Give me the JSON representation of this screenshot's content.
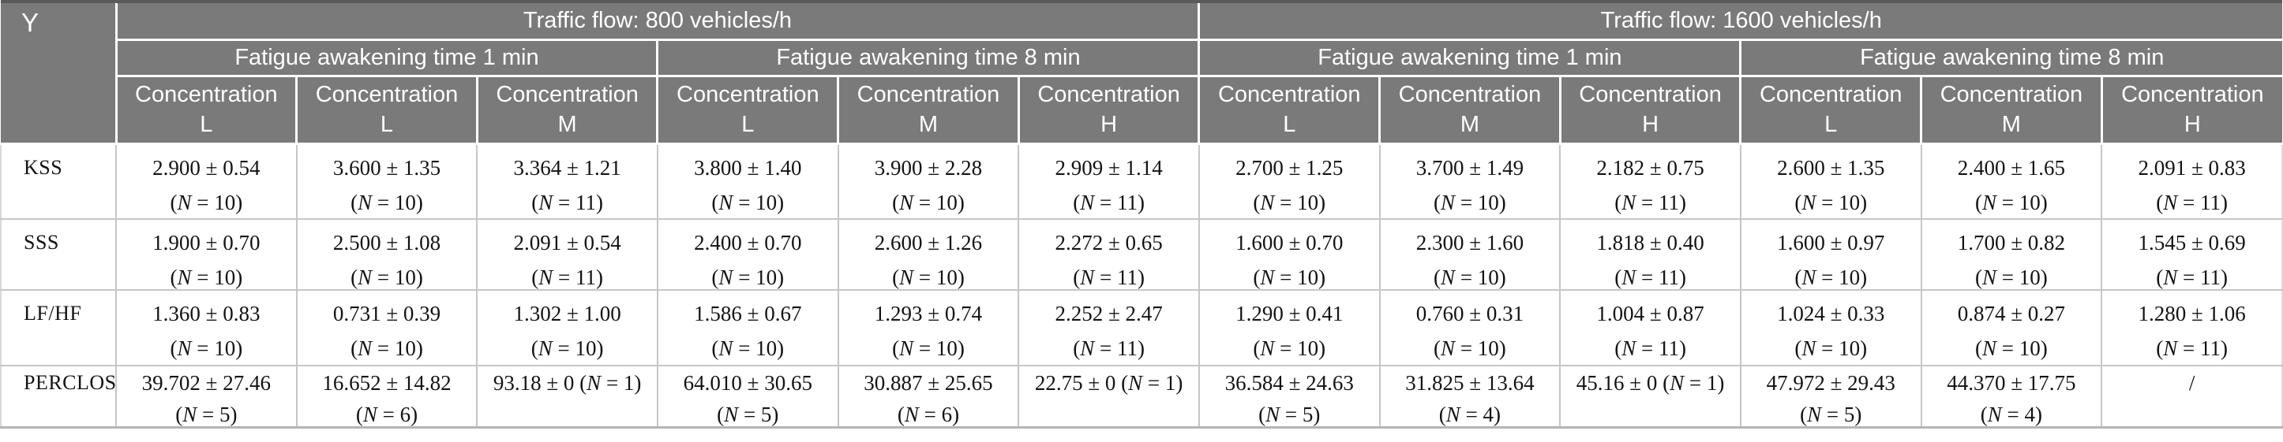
{
  "header": {
    "corner": "Y",
    "flow_groups": [
      {
        "title": "Traffic flow: 800 vehicles/h",
        "time_groups": [
          {
            "title": "Fatigue awakening time 1 min",
            "concentrations": [
              {
                "word": "Concentration",
                "level": "L"
              },
              {
                "word": "Concentration",
                "level": "L"
              },
              {
                "word": "Concentration",
                "level": "M"
              }
            ]
          },
          {
            "title": "Fatigue awakening time 8 min",
            "concentrations": [
              {
                "word": "Concentration",
                "level": "L"
              },
              {
                "word": "Concentration",
                "level": "M"
              },
              {
                "word": "Concentration",
                "level": "H"
              }
            ]
          }
        ]
      },
      {
        "title": "Traffic flow: 1600 vehicles/h",
        "time_groups": [
          {
            "title": "Fatigue awakening time 1 min",
            "concentrations": [
              {
                "word": "Concentration",
                "level": "L"
              },
              {
                "word": "Concentration",
                "level": "M"
              },
              {
                "word": "Concentration",
                "level": "H"
              }
            ]
          },
          {
            "title": "Fatigue awakening time 8 min",
            "concentrations": [
              {
                "word": "Concentration",
                "level": "L"
              },
              {
                "word": "Concentration",
                "level": "M"
              },
              {
                "word": "Concentration",
                "level": "H"
              }
            ]
          }
        ]
      }
    ]
  },
  "rows": [
    {
      "label": "KSS",
      "cells": [
        {
          "line1": "2.900 ± 0.54",
          "line2": "(N = 10)"
        },
        {
          "line1": "3.600 ± 1.35",
          "line2": "(N = 10)"
        },
        {
          "line1": "3.364 ± 1.21",
          "line2": "(N = 11)"
        },
        {
          "line1": "3.800 ± 1.40",
          "line2": "(N = 10)"
        },
        {
          "line1": "3.900 ± 2.28",
          "line2": "(N = 10)"
        },
        {
          "line1": "2.909 ± 1.14",
          "line2": "(N = 11)"
        },
        {
          "line1": "2.700 ± 1.25",
          "line2": "(N = 10)"
        },
        {
          "line1": "3.700 ± 1.49",
          "line2": "(N = 10)"
        },
        {
          "line1": "2.182 ± 0.75",
          "line2": "(N = 11)"
        },
        {
          "line1": "2.600 ± 1.35",
          "line2": "(N = 10)"
        },
        {
          "line1": "2.400 ± 1.65",
          "line2": "(N = 10)"
        },
        {
          "line1": "2.091 ± 0.83",
          "line2": "(N = 11)"
        }
      ]
    },
    {
      "label": "SSS",
      "cells": [
        {
          "line1": "1.900 ± 0.70",
          "line2": "(N = 10)"
        },
        {
          "line1": "2.500 ± 1.08",
          "line2": "(N = 10)"
        },
        {
          "line1": "2.091 ± 0.54",
          "line2": "(N = 11)"
        },
        {
          "line1": "2.400 ± 0.70",
          "line2": "(N = 10)"
        },
        {
          "line1": "2.600 ± 1.26",
          "line2": "(N = 10)"
        },
        {
          "line1": "2.272 ± 0.65",
          "line2": "(N = 11)"
        },
        {
          "line1": "1.600 ± 0.70",
          "line2": "(N = 10)"
        },
        {
          "line1": "2.300 ± 1.60",
          "line2": "(N = 10)"
        },
        {
          "line1": "1.818 ± 0.40",
          "line2": "(N = 11)"
        },
        {
          "line1": "1.600 ± 0.97",
          "line2": "(N = 10)"
        },
        {
          "line1": "1.700 ± 0.82",
          "line2": "(N = 10)"
        },
        {
          "line1": "1.545 ± 0.69",
          "line2": "(N = 11)"
        }
      ]
    },
    {
      "label": "LF/HF",
      "cells": [
        {
          "line1": "1.360 ± 0.83",
          "line2": "(N = 10)"
        },
        {
          "line1": "0.731 ± 0.39",
          "line2": "(N = 10)"
        },
        {
          "line1": "1.302 ± 1.00",
          "line2": "(N = 10)"
        },
        {
          "line1": "1.586 ± 0.67",
          "line2": "(N = 10)"
        },
        {
          "line1": "1.293 ± 0.74",
          "line2": "(N = 10)"
        },
        {
          "line1": "2.252 ± 2.47",
          "line2": "(N = 11)"
        },
        {
          "line1": "1.290 ± 0.41",
          "line2": "(N = 10)"
        },
        {
          "line1": "0.760 ± 0.31",
          "line2": "(N = 10)"
        },
        {
          "line1": "1.004 ± 0.87",
          "line2": "(N = 11)"
        },
        {
          "line1": "1.024 ± 0.33",
          "line2": "(N = 10)"
        },
        {
          "line1": "0.874 ± 0.27",
          "line2": "(N = 10)"
        },
        {
          "line1": "1.280 ± 1.06",
          "line2": "(N = 11)"
        }
      ]
    },
    {
      "label": "PERCLOS",
      "cells": [
        {
          "line1": "39.702 ± 27.46",
          "line2": "(N = 5)"
        },
        {
          "line1": "16.652 ± 14.82",
          "line2": "(N = 6)"
        },
        {
          "line1": "93.18 ± 0 (N = 1)",
          "line2": ""
        },
        {
          "line1": "64.010 ± 30.65",
          "line2": "(N = 5)"
        },
        {
          "line1": "30.887 ± 25.65",
          "line2": "(N = 6)"
        },
        {
          "line1": "22.75 ± 0 (N = 1)",
          "line2": ""
        },
        {
          "line1": "36.584 ± 24.63",
          "line2": "(N = 5)"
        },
        {
          "line1": "31.825 ± 13.64",
          "line2": "(N = 4)"
        },
        {
          "line1": "45.16 ± 0 (N = 1)",
          "line2": ""
        },
        {
          "line1": "47.972 ± 29.43",
          "line2": "(N = 5)"
        },
        {
          "line1": "44.370 ± 17.75",
          "line2": "(N = 4)"
        },
        {
          "line1": "/",
          "line2": ""
        }
      ]
    }
  ],
  "colors": {
    "header_bg": "#7a7a7a",
    "header_text": "#ffffff",
    "top_border": "#5a5a5a",
    "grid_line": "#c6c6c6",
    "bottom_border": "#b5b5b5",
    "body_text": "#131313"
  }
}
